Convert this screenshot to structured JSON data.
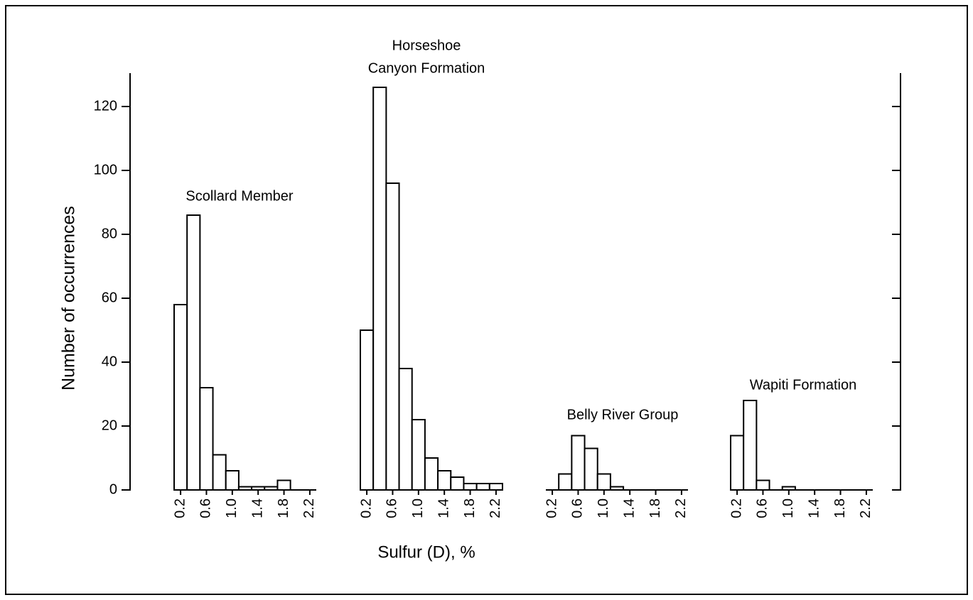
{
  "chart_data": [
    {
      "type": "histogram",
      "title": [
        "Scollard Member"
      ],
      "bins": [
        0.1,
        0.3,
        0.5,
        0.7,
        0.9,
        1.1,
        1.3,
        1.5,
        1.7,
        1.9,
        2.1,
        2.3
      ],
      "values": [
        58,
        86,
        32,
        11,
        6,
        1,
        1,
        1,
        3,
        0,
        0
      ],
      "xlim": [
        0.1,
        2.3
      ],
      "xticks": [
        0.2,
        0.6,
        {
          "value": 1,
          "label": "1.0"
        },
        1.4,
        1.8,
        2.2
      ],
      "ylim": [
        0,
        130
      ],
      "yticks": [
        0,
        20,
        40,
        60,
        80,
        100,
        120
      ],
      "xlabel": "Sulfur (D), %",
      "ylabel": "Number of occurrences"
    },
    {
      "type": "histogram",
      "title": [
        "Horseshoe",
        "Canyon Formation"
      ],
      "bins": [
        0.1,
        0.3,
        0.5,
        0.7,
        0.9,
        1.1,
        1.3,
        1.5,
        1.7,
        1.9,
        2.1,
        2.3
      ],
      "values": [
        50,
        126,
        96,
        38,
        22,
        10,
        6,
        4,
        2,
        2,
        2
      ],
      "xlim": [
        0.1,
        2.3
      ],
      "xticks": [
        0.2,
        0.6,
        {
          "value": 1,
          "label": "1.0"
        },
        1.4,
        1.8,
        2.2
      ],
      "ylim": [
        0,
        130
      ]
    },
    {
      "type": "histogram",
      "title": [
        "Belly River Group"
      ],
      "bins": [
        0.1,
        0.3,
        0.5,
        0.7,
        0.9,
        1.1,
        1.3,
        1.5,
        1.7,
        1.9,
        2.1,
        2.3
      ],
      "values": [
        0,
        5,
        17,
        13,
        5,
        1,
        0,
        0,
        0,
        0,
        0
      ],
      "xlim": [
        0.1,
        2.3
      ],
      "xticks": [
        0.2,
        0.6,
        {
          "value": 1,
          "label": "1.0"
        },
        1.4,
        1.8,
        2.2
      ],
      "ylim": [
        0,
        130
      ]
    },
    {
      "type": "histogram",
      "title": [
        "Wapiti Formation"
      ],
      "bins": [
        0.1,
        0.3,
        0.5,
        0.7,
        0.9,
        1.1,
        1.3,
        1.5,
        1.7,
        1.9,
        2.1,
        2.3
      ],
      "values": [
        17,
        28,
        3,
        0,
        1,
        0,
        0,
        0,
        0,
        0,
        0
      ],
      "xlim": [
        0.1,
        2.3
      ],
      "xticks": [
        0.2,
        0.6,
        {
          "value": 1,
          "label": "1.0"
        },
        1.4,
        1.8,
        2.2
      ],
      "ylim": [
        0,
        130
      ],
      "yticks": [
        0,
        20,
        40,
        60,
        80,
        100,
        120
      ]
    }
  ]
}
